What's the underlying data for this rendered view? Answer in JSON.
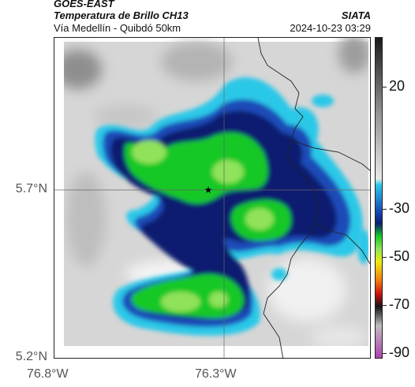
{
  "header": {
    "satellite": "GOES-EAST",
    "product": "Temperatura de Brillo CH13",
    "subtitle": "Vía Medellín - Quibdó 50km",
    "org": "SIATA",
    "datetime": "2024-10-23 03:29"
  },
  "map": {
    "lat_ticks": [
      "5.7°N",
      "5.2°N"
    ],
    "lon_ticks": [
      "76.8°W",
      "76.3°W"
    ],
    "marker_icon": "star-icon",
    "marker_glyph": "★"
  },
  "colorbar": {
    "ticks": [
      "20",
      "-30",
      "-50",
      "-70",
      "-90"
    ],
    "colors": {
      "warm_top": "#1c1c1c",
      "warm_mid": "#9a9a9a",
      "warm_low": "#e8e8e8",
      "cyan": "#2bc8e8",
      "blue": "#1a4bb8",
      "navy": "#0a1f70",
      "green": "#18c828",
      "lightgreen": "#8fe25a",
      "yellow": "#ecec10",
      "orange": "#f07a10",
      "red": "#cc1010",
      "black": "#141414",
      "grey": "#bdbdbd",
      "magenta": "#b040b0"
    }
  }
}
